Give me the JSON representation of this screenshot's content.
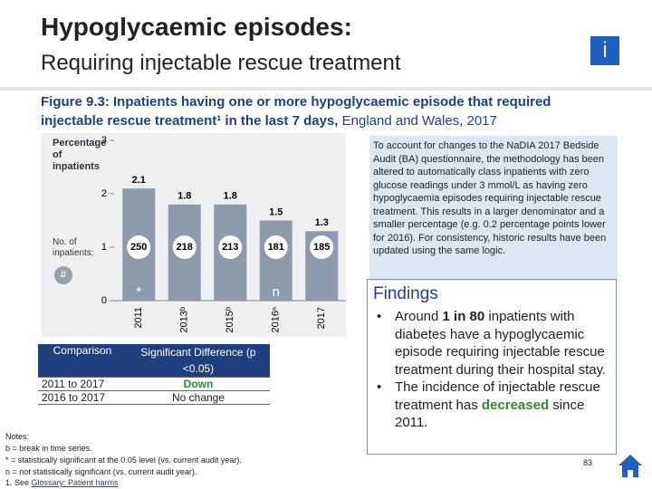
{
  "header": {
    "title": "Hypoglycaemic episodes:",
    "subtitle": "Requiring injectable rescue treatment",
    "icon": "i"
  },
  "figure_caption": {
    "bold": "Figure 9.3: Inpatients having one or more hypoglycaemic episode that required injectable rescue treatment¹ in the last 7 days,",
    "normal": " England and Wales, 2017"
  },
  "chart_data": {
    "type": "bar",
    "y_label": "Percentage of inpatients",
    "count_label": "No. of inpatients:",
    "count_symbol": "#",
    "categories": [
      "2011",
      "2013ᵇ",
      "2015ᵇ",
      "2016ⁿ",
      "2017"
    ],
    "values": [
      2.1,
      1.8,
      1.8,
      1.5,
      1.3
    ],
    "counts": [
      250,
      218,
      213,
      181,
      185
    ],
    "markers": [
      "*",
      null,
      null,
      "n",
      null
    ],
    "color": "#8d9aab",
    "ylim": [
      0,
      3
    ],
    "yticks": [
      0,
      1,
      2,
      3
    ]
  },
  "note_box": "To account for changes to the NaDIA 2017 Bedside Audit (BA) questionnaire, the methodology has been altered to automatically class inpatients with zero glucose readings under 3 mmol/L as having zero hypoglycaemia episodes requiring injectable rescue treatment. This results in a larger denominator and a smaller percentage (e.g. 0.2 percentage points lower for 2016). For consistency, historic results have been updated using the same logic.",
  "findings": {
    "title": "Findings",
    "bullets": [
      [
        "Around ",
        "1 in 80",
        " inpatients with diabetes have a hypoglycaemic episode requiring injectable rescue treatment during their hospital stay."
      ],
      [
        "The incidence of injectable rescue treatment has ",
        "decreased",
        " since 2011."
      ]
    ]
  },
  "table": {
    "header": [
      "Comparison",
      "Significant Difference (p <0.05)"
    ],
    "rows": [
      [
        "2011 to 2017",
        "Down"
      ],
      [
        "2016 to 2017",
        "No change"
      ]
    ]
  },
  "notes": [
    "Notes:",
    "b = break in time series.",
    "* = statistically significant at the 0.05 level (vs. current audit year).",
    "n = not statistically significant (vs. current audit year)."
  ],
  "footnote": {
    "text": "1. See ",
    "link": "Glossary: Patient harms"
  },
  "page_number": "83"
}
